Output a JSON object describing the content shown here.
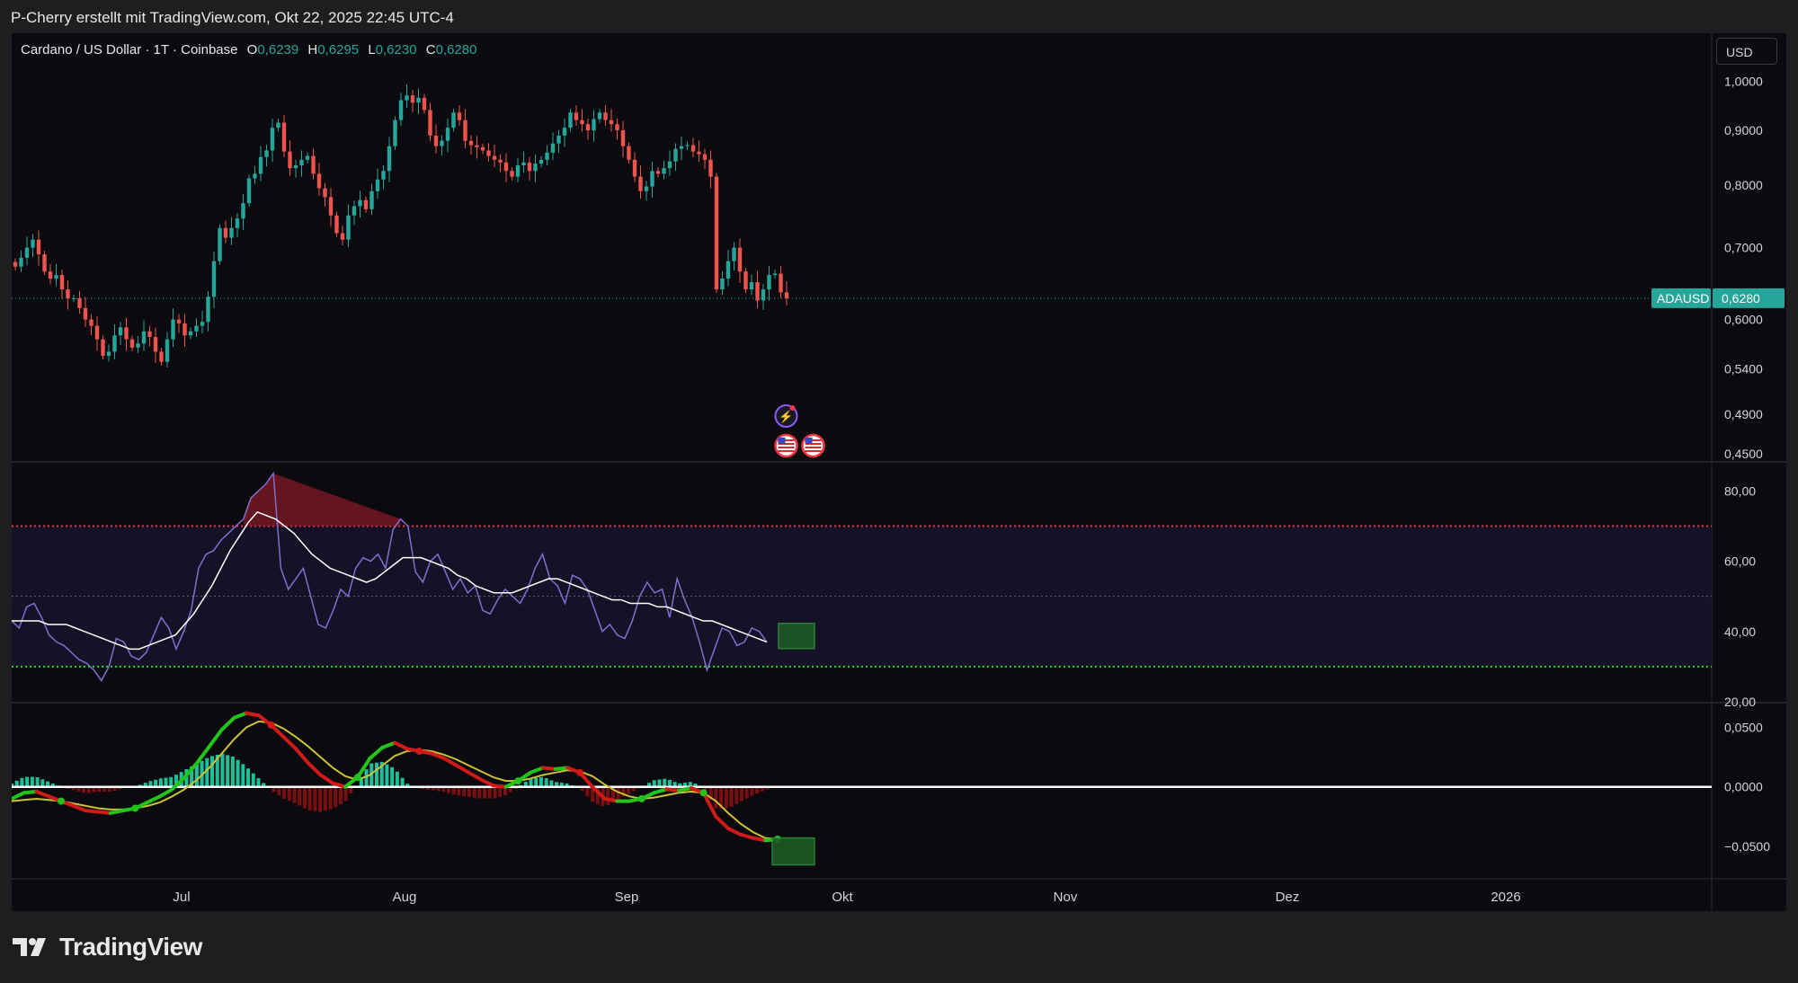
{
  "header": {
    "caption": "P-Cherry erstellt mit TradingView.com, Okt 22, 2025 22:45 UTC-4"
  },
  "legend": {
    "symbol": "Cardano / US Dollar · 1T · Coinbase",
    "o_label": "O",
    "o": "0,6239",
    "h_label": "H",
    "h": "0,6295",
    "l_label": "L",
    "l": "0,6230",
    "c_label": "C",
    "c": "0,6280"
  },
  "currency_button": "USD",
  "price_tag": {
    "symbol": "ADAUSD",
    "value": "0,6280"
  },
  "brand": {
    "name": "TradingView"
  },
  "colors": {
    "up": "#26a69a",
    "down": "#ef5350",
    "background": "#0b0b0f",
    "axis_bg": "#0b0b0f",
    "rsi": "#7e6fd0",
    "rsi_ma": "#ffffff",
    "overbought": "#f23645",
    "oversold": "#22dd22",
    "macd_up": "#22c41c",
    "macd_down": "#d01919",
    "signal": "#c9c234",
    "box": "#2e8b3a"
  },
  "chart_data": [
    {
      "type": "candlestick",
      "title": "Cardano / US Dollar · 1T · Coinbase",
      "price_axis_labels": [
        "1,0000",
        "0,9000",
        "0,8000",
        "0,7000",
        "0,6000",
        "0,5400",
        "0,4900",
        "0,4500"
      ],
      "time_axis_labels": [
        "Jul",
        "Aug",
        "Sep",
        "Okt",
        "Nov",
        "Dez",
        "2026"
      ],
      "scale": "log",
      "ylim": [
        0.45,
        1.03
      ],
      "last_price": 0.628,
      "event_icons": [
        "lightning-event-icon",
        "us-flag-event-icon",
        "us-flag-event-icon"
      ],
      "close_series": [
        0.672,
        0.685,
        0.7,
        0.712,
        0.69,
        0.665,
        0.655,
        0.66,
        0.64,
        0.628,
        0.628,
        0.615,
        0.6,
        0.592,
        0.575,
        0.555,
        0.56,
        0.58,
        0.59,
        0.575,
        0.565,
        0.57,
        0.585,
        0.578,
        0.56,
        0.548,
        0.575,
        0.6,
        0.595,
        0.58,
        0.585,
        0.592,
        0.597,
        0.63,
        0.68,
        0.73,
        0.715,
        0.73,
        0.745,
        0.77,
        0.812,
        0.82,
        0.85,
        0.862,
        0.905,
        0.915,
        0.86,
        0.83,
        0.835,
        0.845,
        0.852,
        0.82,
        0.795,
        0.78,
        0.75,
        0.722,
        0.712,
        0.75,
        0.765,
        0.775,
        0.76,
        0.79,
        0.81,
        0.825,
        0.87,
        0.92,
        0.96,
        0.97,
        0.955,
        0.965,
        0.94,
        0.89,
        0.87,
        0.88,
        0.905,
        0.935,
        0.92,
        0.88,
        0.872,
        0.868,
        0.862,
        0.852,
        0.845,
        0.84,
        0.825,
        0.815,
        0.835,
        0.84,
        0.825,
        0.838,
        0.845,
        0.858,
        0.875,
        0.89,
        0.905,
        0.935,
        0.92,
        0.912,
        0.9,
        0.922,
        0.935,
        0.92,
        0.912,
        0.9,
        0.87,
        0.845,
        0.815,
        0.79,
        0.798,
        0.825,
        0.82,
        0.83,
        0.842,
        0.865,
        0.87,
        0.872,
        0.86,
        0.855,
        0.845,
        0.815,
        0.64,
        0.655,
        0.68,
        0.7,
        0.665,
        0.64,
        0.65,
        0.625,
        0.64,
        0.66,
        0.662,
        0.636,
        0.628
      ],
      "data_note": ""
    },
    {
      "type": "line",
      "series": [
        {
          "values": [
            43,
            41,
            47,
            48,
            44,
            39,
            37,
            36,
            34,
            32,
            31,
            29,
            26,
            30,
            38,
            37,
            33,
            32,
            34,
            39,
            44,
            41,
            35,
            40,
            46,
            58,
            62,
            63,
            66,
            68,
            70,
            72,
            78,
            80,
            82,
            85,
            58,
            52,
            55,
            58,
            50,
            42,
            41,
            46,
            52,
            50,
            58,
            61,
            60,
            62,
            58,
            69,
            72,
            70,
            57,
            54,
            60,
            62,
            57,
            52,
            55,
            51,
            53,
            46,
            45,
            49,
            52,
            50,
            48,
            52,
            58,
            62,
            55,
            53,
            48,
            56,
            55,
            52,
            46,
            40,
            42,
            39,
            38,
            43,
            50,
            54,
            51,
            52,
            44,
            55,
            49,
            44,
            37,
            29,
            35,
            41,
            40,
            36,
            37,
            41,
            40,
            37
          ]
        },
        {
          "values": [
            43,
            43,
            43,
            43,
            42,
            42,
            42,
            41,
            40,
            39,
            38,
            37,
            36,
            35,
            35,
            36,
            37,
            38,
            39,
            42,
            45,
            49,
            53,
            58,
            63,
            67,
            71,
            74,
            73,
            72,
            70,
            68,
            65,
            62,
            60,
            58,
            57,
            56,
            55,
            54,
            55,
            57,
            59,
            61,
            61,
            61,
            60,
            59,
            58,
            56,
            55,
            53,
            52,
            51,
            51,
            51,
            52,
            53,
            54,
            55,
            55,
            54,
            53,
            52,
            51,
            50,
            49,
            49,
            48,
            48,
            48,
            47,
            47,
            46,
            45,
            44,
            43,
            43,
            42,
            41,
            40,
            39,
            38,
            37
          ]
        }
      ],
      "y_axis_labels": [
        "80,00",
        "60,00",
        "40,00",
        "20,00"
      ],
      "levels": [
        70,
        50,
        30
      ],
      "ylim": [
        20,
        87
      ]
    },
    {
      "type": "line",
      "series": [
        {
          "values": [
            -0.01,
            -0.005,
            -0.004,
            -0.008,
            -0.012,
            -0.016,
            -0.02,
            -0.021,
            -0.022,
            -0.02,
            -0.018,
            -0.013,
            -0.008,
            -0.002,
            0.008,
            0.02,
            0.034,
            0.048,
            0.058,
            0.062,
            0.06,
            0.052,
            0.042,
            0.032,
            0.02,
            0.01,
            0.003,
            0.0,
            0.008,
            0.024,
            0.033,
            0.037,
            0.032,
            0.03,
            0.028,
            0.024,
            0.018,
            0.012,
            0.006,
            0.001,
            0.0,
            0.005,
            0.012,
            0.016,
            0.015,
            0.016,
            0.012,
            0.0,
            -0.01,
            -0.012,
            -0.012,
            -0.01,
            -0.005,
            -0.002,
            -0.003,
            -0.001,
            -0.005,
            -0.025,
            -0.035,
            -0.04,
            -0.043,
            -0.045,
            -0.044
          ]
        },
        {
          "values": [
            -0.012,
            -0.011,
            -0.01,
            -0.011,
            -0.012,
            -0.014,
            -0.016,
            -0.018,
            -0.019,
            -0.019,
            -0.018,
            -0.016,
            -0.013,
            -0.008,
            -0.002,
            0.006,
            0.016,
            0.028,
            0.04,
            0.05,
            0.055,
            0.054,
            0.049,
            0.042,
            0.034,
            0.025,
            0.016,
            0.009,
            0.006,
            0.01,
            0.018,
            0.026,
            0.03,
            0.031,
            0.03,
            0.027,
            0.023,
            0.018,
            0.013,
            0.008,
            0.005,
            0.005,
            0.007,
            0.01,
            0.012,
            0.014,
            0.013,
            0.009,
            0.002,
            -0.004,
            -0.008,
            -0.01,
            -0.009,
            -0.007,
            -0.005,
            -0.004,
            -0.005,
            -0.012,
            -0.022,
            -0.031,
            -0.038,
            -0.043,
            -0.044
          ]
        }
      ],
      "y_axis_labels": [
        "0,0500",
        "0,0000",
        "−0,0500"
      ],
      "ylim": [
        -0.075,
        0.067
      ]
    }
  ]
}
